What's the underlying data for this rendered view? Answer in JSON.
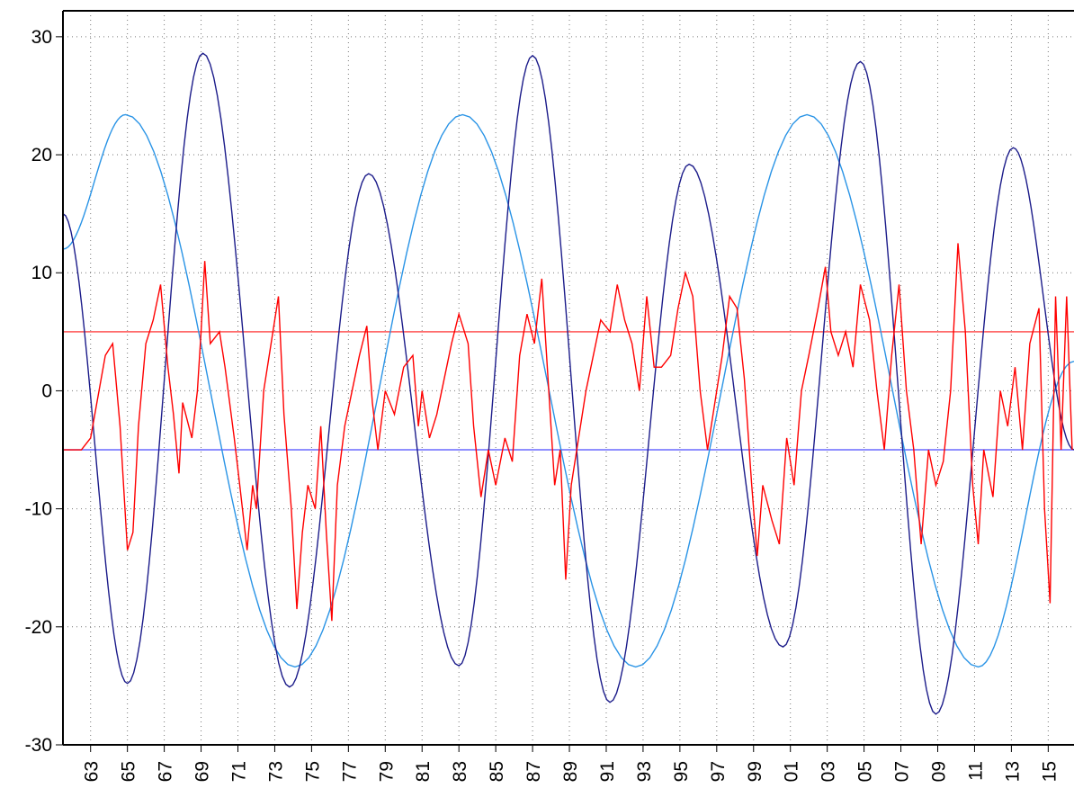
{
  "chart_data": {
    "type": "line",
    "xlim": [
      1961.5,
      2016.4
    ],
    "ylim": [
      -30,
      32.2
    ],
    "yticks": [
      30,
      20,
      10,
      0,
      -10,
      -20,
      -30
    ],
    "xticks": [
      {
        "value": 1963,
        "label": "63"
      },
      {
        "value": 1965,
        "label": "65"
      },
      {
        "value": 1967,
        "label": "67"
      },
      {
        "value": 1969,
        "label": "69"
      },
      {
        "value": 1971,
        "label": "71"
      },
      {
        "value": 1973,
        "label": "73"
      },
      {
        "value": 1975,
        "label": "75"
      },
      {
        "value": 1977,
        "label": "77"
      },
      {
        "value": 1979,
        "label": "79"
      },
      {
        "value": 1981,
        "label": "81"
      },
      {
        "value": 1983,
        "label": "83"
      },
      {
        "value": 1985,
        "label": "85"
      },
      {
        "value": 1987,
        "label": "87"
      },
      {
        "value": 1989,
        "label": "89"
      },
      {
        "value": 1991,
        "label": "91"
      },
      {
        "value": 1993,
        "label": "93"
      },
      {
        "value": 1995,
        "label": "95"
      },
      {
        "value": 1997,
        "label": "97"
      },
      {
        "value": 1999,
        "label": "99"
      },
      {
        "value": 2001,
        "label": "01"
      },
      {
        "value": 2003,
        "label": "03"
      },
      {
        "value": 2005,
        "label": "05"
      },
      {
        "value": 2007,
        "label": "07"
      },
      {
        "value": 2009,
        "label": "09"
      },
      {
        "value": 2011,
        "label": "11"
      },
      {
        "value": 2013,
        "label": "13"
      },
      {
        "value": 2015,
        "label": "15"
      }
    ],
    "grid": true,
    "hlines": [
      {
        "value": 5,
        "color": "#ff5a5a"
      },
      {
        "value": -5,
        "color": "#6a6aff"
      }
    ],
    "series": [
      {
        "color": "#2a94e6",
        "smooth": true,
        "x": [
          1961.5,
          1964.9,
          1974.1,
          1983.2,
          1992.6,
          2001.9,
          2011.2,
          2016.4
        ],
        "values": [
          12,
          23.4,
          -23.4,
          23.4,
          -23.4,
          23.4,
          -23.4,
          2.5
        ]
      },
      {
        "color": "#1c1c8a",
        "smooth": true,
        "x": [
          1961.5,
          1965,
          1969.1,
          1973.8,
          1978.1,
          1983,
          1987,
          1991.2,
          1995.5,
          2000.6,
          2004.8,
          2008.9,
          2013.1,
          2016.4
        ],
        "values": [
          15,
          -24.8,
          28.6,
          -25.1,
          18.4,
          -23.3,
          28.4,
          -26.4,
          19.2,
          -21.7,
          27.9,
          -27.4,
          20.6,
          -5
        ]
      },
      {
        "color": "#ff0000",
        "smooth": false,
        "x": [
          1961.5,
          1962.5,
          1963,
          1963.8,
          1964.2,
          1964.6,
          1965,
          1965.3,
          1965.6,
          1966,
          1966.4,
          1966.8,
          1967.2,
          1967.5,
          1967.8,
          1968,
          1968.5,
          1968.8,
          1969,
          1969.2,
          1969.5,
          1970,
          1970.3,
          1970.8,
          1971.1,
          1971.5,
          1971.8,
          1972,
          1972.4,
          1972.8,
          1973.2,
          1973.5,
          1973.9,
          1974.2,
          1974.5,
          1974.8,
          1975.2,
          1975.5,
          1975.8,
          1976.1,
          1976.4,
          1976.8,
          1977.2,
          1977.6,
          1978,
          1978.3,
          1978.6,
          1979,
          1979.5,
          1980,
          1980.5,
          1980.8,
          1981,
          1981.4,
          1981.8,
          1982.2,
          1982.6,
          1983,
          1983.5,
          1983.8,
          1984.2,
          1984.6,
          1985,
          1985.5,
          1985.9,
          1986.3,
          1986.7,
          1987.1,
          1987.5,
          1987.8,
          1988.2,
          1988.5,
          1988.8,
          1989.1,
          1989.5,
          1989.9,
          1990.3,
          1990.7,
          1991.2,
          1991.6,
          1992,
          1992.4,
          1992.8,
          1993.2,
          1993.6,
          1994,
          1994.5,
          1994.9,
          1995.3,
          1995.7,
          1996.1,
          1996.5,
          1996.9,
          1997.3,
          1997.7,
          1998.1,
          1998.5,
          1998.9,
          1999.2,
          1999.5,
          2000,
          2000.4,
          2000.8,
          2001.2,
          2001.6,
          2002,
          2002.5,
          2002.9,
          2003.2,
          2003.6,
          2004,
          2004.4,
          2004.8,
          2005.3,
          2005.7,
          2006.1,
          2006.5,
          2006.9,
          2007.3,
          2007.7,
          2008.1,
          2008.5,
          2008.9,
          2009.3,
          2009.7,
          2010.1,
          2010.5,
          2010.9,
          2011.2,
          2011.5,
          2012,
          2012.4,
          2012.8,
          2013.2,
          2013.6,
          2014,
          2014.5,
          2014.8,
          2015.1,
          2015.4,
          2015.7,
          2016,
          2016.3
        ],
        "values": [
          -5,
          -5,
          -4,
          3,
          4,
          -3,
          -13.5,
          -12,
          -3,
          4,
          6,
          9,
          2,
          -2,
          -7,
          -1,
          -4,
          0,
          5,
          11,
          4,
          5,
          2,
          -4,
          -8,
          -13.5,
          -8,
          -10,
          0,
          4,
          8,
          -2,
          -10,
          -18.5,
          -12,
          -8,
          -10,
          -3,
          -12,
          -19.5,
          -8,
          -3,
          0,
          3,
          5.5,
          -1,
          -5,
          0,
          -2,
          2,
          3,
          -3,
          0,
          -4,
          -2,
          1,
          4,
          6.5,
          4,
          -3,
          -9,
          -5,
          -8,
          -4,
          -6,
          3,
          6.5,
          4,
          9.5,
          2,
          -8,
          -5,
          -16,
          -8,
          -4,
          0,
          3,
          6,
          5,
          9,
          6,
          4,
          0,
          8,
          2,
          2,
          3,
          7,
          10,
          8,
          0,
          -5,
          -1,
          3,
          8,
          7,
          1,
          -8,
          -14,
          -8,
          -11,
          -13,
          -4,
          -8,
          0,
          3,
          7,
          10.5,
          5,
          3,
          5,
          2,
          9,
          6,
          0,
          -5,
          3,
          9,
          0,
          -5,
          -13,
          -5,
          -8,
          -6,
          0,
          12.5,
          5,
          -8,
          -13,
          -5,
          -9,
          0,
          -3,
          2,
          -5,
          4,
          7,
          -10,
          -18,
          8,
          -5,
          8,
          -5
        ]
      }
    ]
  }
}
